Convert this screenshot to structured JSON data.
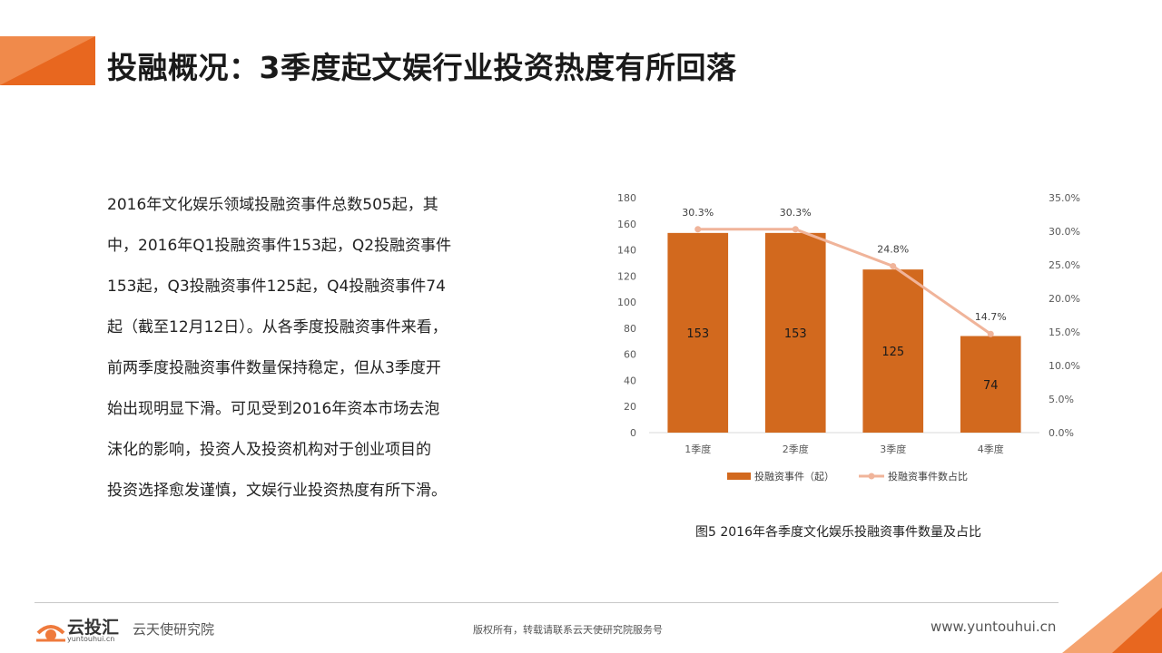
{
  "header": {
    "title": "投融概况：3季度起文娱行业投资热度有所回落",
    "accent_color": "#ef7a3c"
  },
  "body": {
    "paragraph_lines": [
      "2016年文化娱乐领域投融资事件总数505起，其",
      "中，2016年Q1投融资事件153起，Q2投融资事件",
      "153起，Q3投融资事件125起，Q4投融资事件74",
      "起（截至12月12日）。从各季度投融资事件来看，",
      "前两季度投融资事件数量保持稳定，但从3季度开",
      "始出现明显下滑。可见受到2016年资本市场去泡",
      "沫化的影响，投资人及投资机构对于创业项目的",
      "投资选择愈发谨慎，文娱行业投资热度有所下滑。"
    ]
  },
  "chart_data": {
    "type": "bar",
    "categories": [
      "1季度",
      "2季度",
      "3季度",
      "4季度"
    ],
    "series": [
      {
        "name": "投融资事件（起）",
        "type": "bar",
        "values": [
          153,
          153,
          125,
          74
        ],
        "color": "#d2691e",
        "axis": "left"
      },
      {
        "name": "投融资事件数占比",
        "type": "line",
        "values": [
          30.3,
          30.3,
          24.8,
          14.7
        ],
        "color": "#f0b49a",
        "axis": "right"
      }
    ],
    "bar_labels": [
      "153",
      "153",
      "125",
      "74"
    ],
    "line_labels": [
      "30.3%",
      "30.3%",
      "24.8%",
      "14.7%"
    ],
    "y_left": {
      "ylim": [
        0,
        180
      ],
      "ticks": [
        "0",
        "20",
        "40",
        "60",
        "80",
        "100",
        "120",
        "140",
        "160",
        "180"
      ]
    },
    "y_right": {
      "ylim": [
        0,
        35
      ],
      "ticks": [
        "0.0%",
        "5.0%",
        "10.0%",
        "15.0%",
        "20.0%",
        "25.0%",
        "30.0%",
        "35.0%"
      ]
    },
    "grid": false,
    "legend_position": "bottom",
    "caption": "图5  2016年各季度文化娱乐投融资事件数量及占比"
  },
  "footer": {
    "logo_name": "云投汇",
    "logo_domain": "yuntouhui.cn",
    "org": "云天使研究院",
    "copyright": "版权所有，转载请联系云天使研究院服务号",
    "site": "www.yuntouhui.cn"
  }
}
